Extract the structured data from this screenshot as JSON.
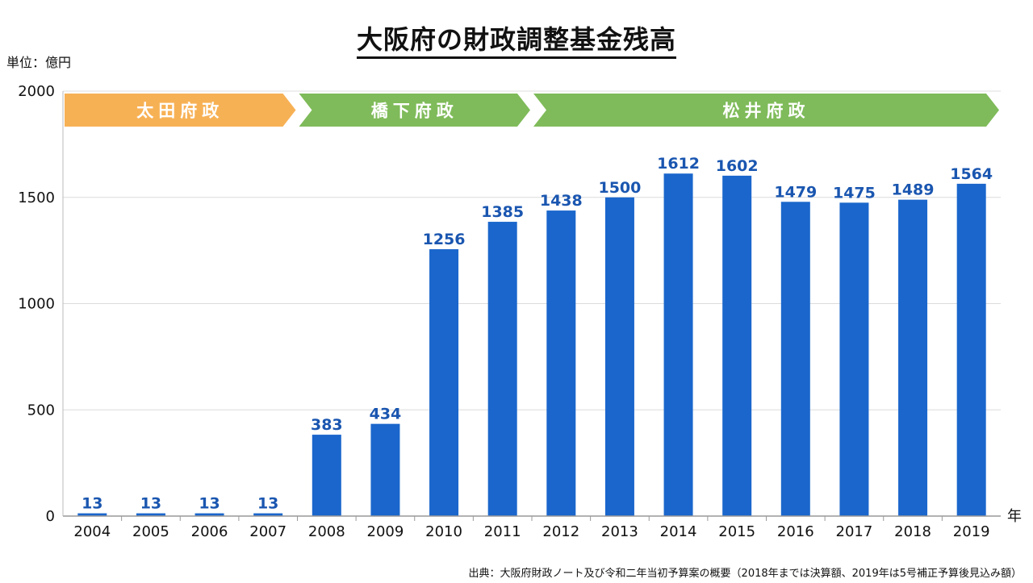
{
  "title": "大阪府の財政調整基金残高",
  "unit_label": "単位：億円",
  "source_note": "出典：大阪府財政ノート及び令和二年当初予算案の概要（2018年までは決算額、2019年は5号補正予算後見込み額）",
  "colors": {
    "bar": "#1a66cc",
    "value_label": "#1a56b0",
    "era_ota": "#f7b155",
    "era_hashimoto": "#7fbb5a",
    "era_matsui": "#7fbb5a",
    "grid": "#dcdcdc"
  },
  "chart_data": {
    "type": "bar",
    "title": "大阪府の財政調整基金残高",
    "xlabel": "年",
    "ylabel": "単位：億円",
    "ylim": [
      0,
      2000
    ],
    "yticks": [
      "0",
      "500",
      "1000",
      "1500",
      "2000"
    ],
    "grid": "horizontal",
    "categories": [
      "2004",
      "2005",
      "2006",
      "2007",
      "2008",
      "2009",
      "2010",
      "2011",
      "2012",
      "2013",
      "2014",
      "2015",
      "2016",
      "2017",
      "2018",
      "2019"
    ],
    "values": [
      13,
      13,
      13,
      13,
      383,
      434,
      1256,
      1385,
      1438,
      1500,
      1612,
      1602,
      1479,
      1475,
      1489,
      1564
    ],
    "value_labels": [
      "13",
      "13",
      "13",
      "13",
      "383",
      "434",
      "1256",
      "1385",
      "1438",
      "1500",
      "1612",
      "1602",
      "1479",
      "1475",
      "1489",
      "1564"
    ],
    "annotations": [
      {
        "label": "太田府政",
        "from": "2004",
        "to": "2007"
      },
      {
        "label": "橋下府政",
        "from": "2008",
        "to": "2011"
      },
      {
        "label": "松井府政",
        "from": "2012",
        "to": "2019"
      }
    ]
  }
}
